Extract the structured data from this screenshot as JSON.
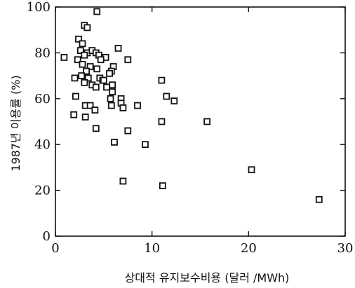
{
  "chart_data": {
    "type": "scatter",
    "title": "",
    "xlabel": "상대적  유지보수비용 (달러 /MWh)",
    "ylabel": "1987년 이용률 (%)",
    "xlim": [
      0,
      30
    ],
    "ylim": [
      0,
      100
    ],
    "x_ticks": [
      0,
      10,
      20,
      30
    ],
    "y_ticks": [
      0,
      20,
      40,
      60,
      80,
      100
    ],
    "x_tick_labels": [
      "0",
      "10",
      "20",
      "30"
    ],
    "y_tick_labels": [
      "0",
      "20",
      "40",
      "60",
      "80",
      "100"
    ],
    "grid": false,
    "marker": "open-square",
    "points": [
      [
        4.3,
        98
      ],
      [
        3.0,
        92
      ],
      [
        3.3,
        91
      ],
      [
        2.4,
        86
      ],
      [
        2.8,
        84
      ],
      [
        2.6,
        81
      ],
      [
        3.3,
        80
      ],
      [
        3.8,
        81
      ],
      [
        4.2,
        80
      ],
      [
        3.0,
        79
      ],
      [
        4.5,
        79
      ],
      [
        5.2,
        78
      ],
      [
        4.7,
        77
      ],
      [
        6.5,
        82
      ],
      [
        7.5,
        77
      ],
      [
        2.3,
        77
      ],
      [
        2.8,
        75
      ],
      [
        3.6,
        74
      ],
      [
        0.9,
        78
      ],
      [
        4.3,
        73
      ],
      [
        6.0,
        74
      ],
      [
        5.8,
        72
      ],
      [
        5.6,
        71
      ],
      [
        3.2,
        72
      ],
      [
        2.7,
        70
      ],
      [
        3.4,
        69
      ],
      [
        3.0,
        67
      ],
      [
        2.0,
        69
      ],
      [
        3.8,
        66
      ],
      [
        4.6,
        69
      ],
      [
        4.9,
        68
      ],
      [
        4.2,
        65
      ],
      [
        5.3,
        65
      ],
      [
        5.0,
        68
      ],
      [
        5.9,
        66
      ],
      [
        5.9,
        63
      ],
      [
        5.7,
        60
      ],
      [
        6.8,
        60
      ],
      [
        6.8,
        58
      ],
      [
        7.0,
        56
      ],
      [
        2.1,
        61
      ],
      [
        3.1,
        57
      ],
      [
        3.6,
        57
      ],
      [
        4.1,
        55
      ],
      [
        5.8,
        57
      ],
      [
        8.5,
        57
      ],
      [
        11.0,
        68
      ],
      [
        11.5,
        61
      ],
      [
        12.3,
        59
      ],
      [
        1.9,
        53
      ],
      [
        3.1,
        52
      ],
      [
        4.2,
        47
      ],
      [
        7.5,
        46
      ],
      [
        6.1,
        41
      ],
      [
        9.3,
        40
      ],
      [
        11.0,
        50
      ],
      [
        15.7,
        50
      ],
      [
        7.0,
        24
      ],
      [
        11.1,
        22
      ],
      [
        20.3,
        29
      ],
      [
        27.3,
        16
      ]
    ]
  }
}
